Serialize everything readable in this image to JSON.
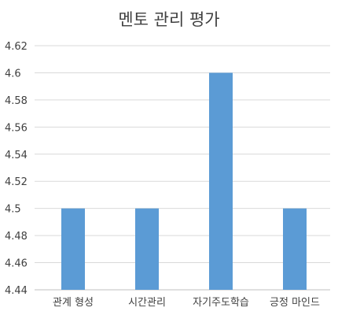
{
  "chart_data": {
    "type": "bar",
    "title": "멘토 관리 평가",
    "categories": [
      "관계 형성",
      "시간관리",
      "자기주도학습",
      "긍정 마인드"
    ],
    "values": [
      4.5,
      4.5,
      4.6,
      4.5
    ],
    "ylim": [
      4.44,
      4.62
    ],
    "yticks": [
      "4.44",
      "4.46",
      "4.48",
      "4.5",
      "4.52",
      "4.54",
      "4.56",
      "4.58",
      "4.6",
      "4.62"
    ],
    "grid": true,
    "legend": "none",
    "bar_color": "#5b9bd5"
  }
}
